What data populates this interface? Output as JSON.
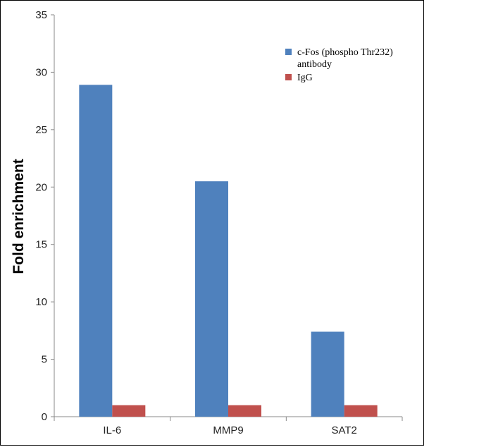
{
  "chart_data": {
    "type": "bar",
    "title": "",
    "xlabel": "",
    "ylabel": "Fold enrichment",
    "categories": [
      "IL-6",
      "MMP9",
      "SAT2"
    ],
    "series": [
      {
        "name": "c-Fos (phospho Thr232) antibody",
        "name_lines": [
          "c-Fos (phospho Thr232)",
          "antibody"
        ],
        "values": [
          28.9,
          20.5,
          7.4
        ],
        "color": "#4f81bd"
      },
      {
        "name": "IgG",
        "name_lines": [
          "IgG"
        ],
        "values": [
          1,
          1,
          1
        ],
        "color": "#c0504d"
      }
    ],
    "ylim": [
      0,
      35
    ],
    "yticks": [
      0,
      5,
      10,
      15,
      20,
      25,
      30,
      35
    ],
    "grid": false,
    "legend_position": "top-right"
  }
}
